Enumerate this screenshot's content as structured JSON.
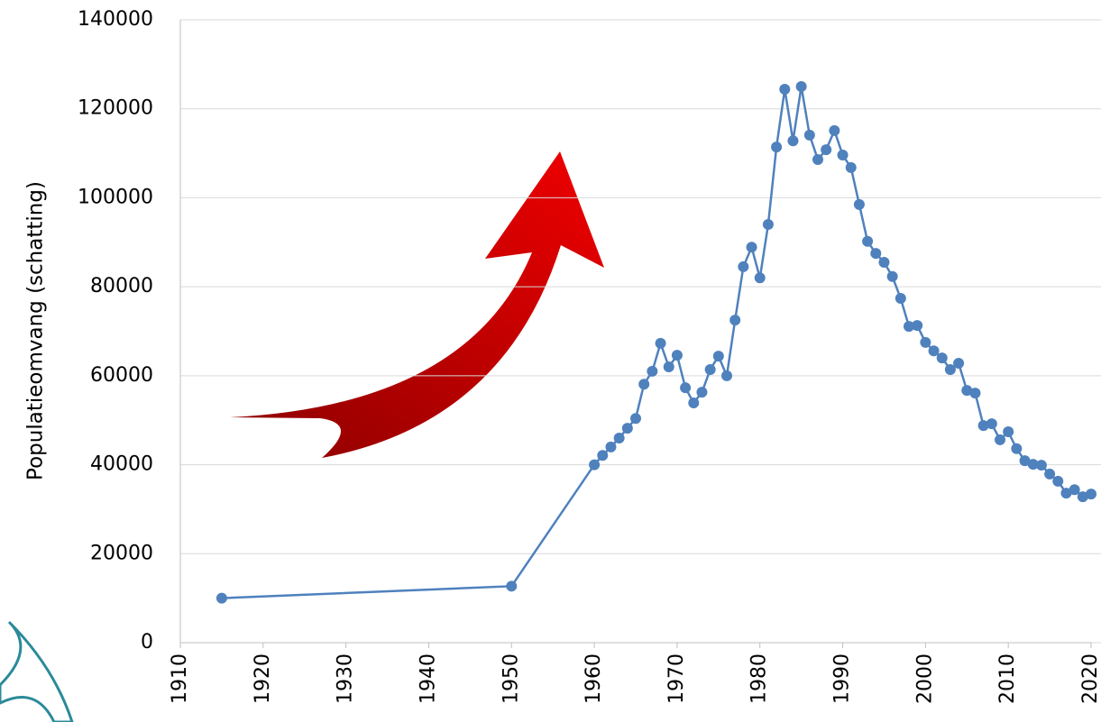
{
  "chart_data": {
    "type": "line",
    "y_label": "Populatieomvang (schatting)",
    "x": [
      1915,
      1950,
      1960,
      1961,
      1962,
      1963,
      1964,
      1965,
      1966,
      1967,
      1968,
      1969,
      1970,
      1971,
      1972,
      1973,
      1974,
      1975,
      1976,
      1977,
      1978,
      1979,
      1980,
      1981,
      1982,
      1983,
      1984,
      1985,
      1986,
      1987,
      1988,
      1989,
      1990,
      1991,
      1992,
      1993,
      1994,
      1995,
      1996,
      1997,
      1998,
      1999,
      2000,
      2001,
      2002,
      2003,
      2004,
      2005,
      2006,
      2007,
      2008,
      2009,
      2010,
      2011,
      2012,
      2013,
      2014,
      2015,
      2016,
      2017,
      2018,
      2019,
      2020
    ],
    "values": [
      10000,
      12700,
      40000,
      42100,
      44000,
      46000,
      48200,
      50400,
      58100,
      61000,
      67300,
      62000,
      64600,
      57300,
      53900,
      56300,
      61400,
      64400,
      60000,
      72500,
      84500,
      88900,
      82000,
      94000,
      111400,
      124400,
      112800,
      125000,
      114100,
      108600,
      110800,
      115100,
      109600,
      106800,
      98500,
      90200,
      87500,
      85500,
      82300,
      77400,
      71100,
      71300,
      67500,
      65600,
      64000,
      61400,
      62800,
      56700,
      56100,
      48800,
      49200,
      45600,
      47400,
      43600,
      40900,
      40100,
      39900,
      37900,
      36300,
      33600,
      34400,
      32800,
      33400
    ],
    "color": "#4f81bd",
    "xlim": [
      1910,
      2020
    ],
    "xticks": [
      1910,
      1920,
      1930,
      1940,
      1950,
      1960,
      1970,
      1980,
      1990,
      2000,
      2010,
      2020
    ],
    "ylim": [
      0,
      140000
    ],
    "yticks": [
      0,
      20000,
      40000,
      60000,
      80000,
      100000,
      120000,
      140000
    ],
    "grid": true
  }
}
